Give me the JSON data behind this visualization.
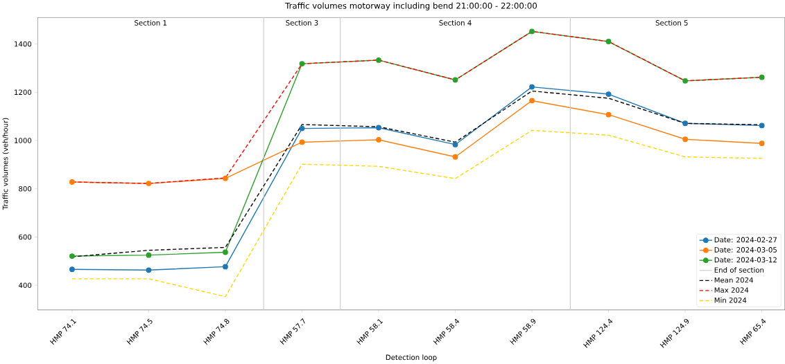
{
  "chart_data": {
    "type": "line",
    "title": "Traffic volumes motorway including bend 21:00:00 - 22:00:00",
    "xlabel": "Detection loop",
    "ylabel": "Traffic volumes (veh/hour)",
    "categories": [
      "HMP 74.1",
      "HMP 74.5",
      "HMP 74.8",
      "HMP 57.7",
      "HMP 58.1",
      "HMP 58.4",
      "HMP 58.9",
      "HMP 124.4",
      "HMP 124.9",
      "HMP 65.4"
    ],
    "series": [
      {
        "name": "Date: 2024-02-27",
        "color": "#1f77b4",
        "marker": "circle",
        "line_style": "solid",
        "values": [
          466,
          463,
          477,
          1050,
          1053,
          983,
          1222,
          1192,
          1071,
          1062
        ]
      },
      {
        "name": "Date: 2024-03-05",
        "color": "#ff7f0e",
        "marker": "circle",
        "line_style": "solid",
        "values": [
          828,
          822,
          843,
          993,
          1003,
          932,
          1165,
          1107,
          1005,
          988
        ]
      },
      {
        "name": "Date: 2024-03-12",
        "color": "#2ca02c",
        "marker": "circle",
        "line_style": "solid",
        "values": [
          521,
          525,
          537,
          1318,
          1333,
          1251,
          1452,
          1410,
          1247,
          1262
        ]
      },
      {
        "name": "Mean 2024",
        "color": "#000000",
        "marker": "none",
        "line_style": "dashed",
        "values": [
          518,
          545,
          557,
          1066,
          1057,
          993,
          1205,
          1175,
          1071,
          1065
        ]
      },
      {
        "name": "Max 2024",
        "color": "#ff0000",
        "marker": "none",
        "line_style": "dashed",
        "values": [
          828,
          822,
          845,
          1318,
          1333,
          1251,
          1452,
          1410,
          1247,
          1262
        ]
      },
      {
        "name": "Min 2024",
        "color": "#ffd700",
        "marker": "none",
        "line_style": "dashed",
        "values": [
          427,
          427,
          353,
          902,
          893,
          842,
          1042,
          1022,
          932,
          926
        ]
      }
    ],
    "annotations": [
      "Section 1",
      "Section 3",
      "Section 4",
      "Section 5",
      "End of section"
    ],
    "ylim": [
      298,
      1510
    ],
    "yticks": [
      400,
      600,
      800,
      1000,
      1200,
      1400
    ],
    "grid": false,
    "legend": "bottom right"
  }
}
